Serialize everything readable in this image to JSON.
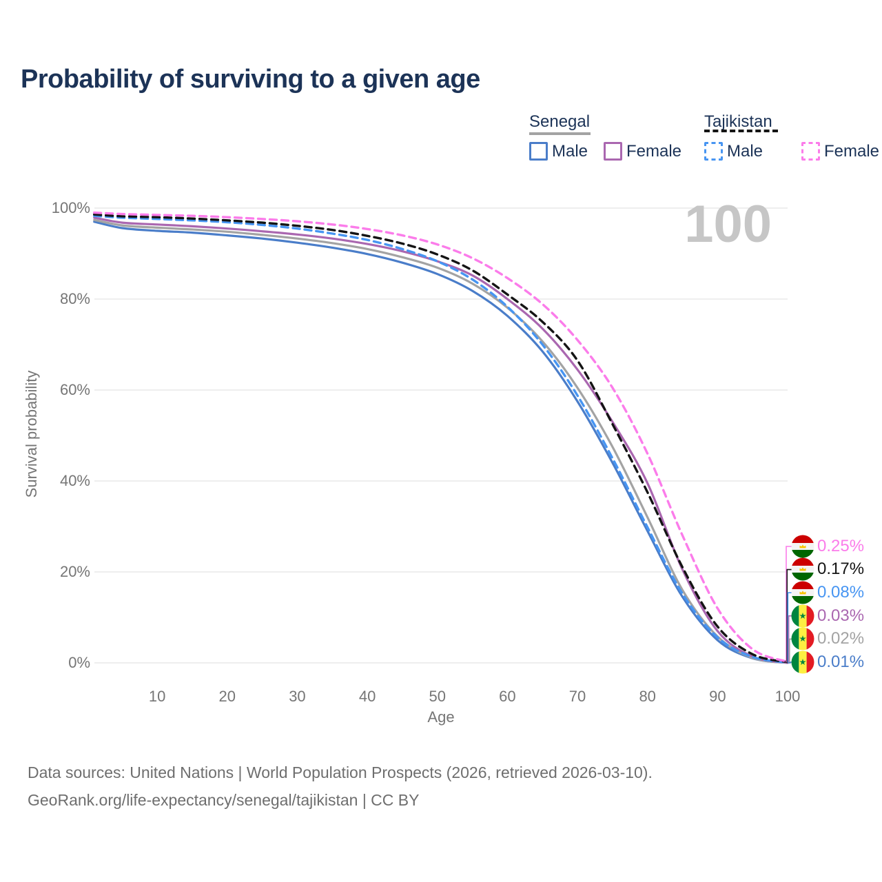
{
  "title": "Probability of surviving to a given age",
  "watermark_age": "100",
  "legend": {
    "groups": [
      {
        "label": "Senegal",
        "items": [
          {
            "label": "Male"
          },
          {
            "label": "Female"
          }
        ]
      },
      {
        "label": "Tajikistan",
        "items": [
          {
            "label": "Male"
          },
          {
            "label": "Female"
          }
        ]
      }
    ]
  },
  "chart_data": {
    "type": "line",
    "title": "Probability of surviving to a given age",
    "xlabel": "Age",
    "ylabel": "Survival probability",
    "xlim": [
      1,
      100
    ],
    "ylim": [
      0,
      100
    ],
    "grid": "horizontal",
    "x_ticks": [
      10,
      20,
      30,
      40,
      50,
      60,
      70,
      80,
      90,
      100
    ],
    "y_ticks": [
      0,
      20,
      40,
      60,
      80,
      100
    ],
    "y_tick_suffix": "%",
    "x": [
      1,
      5,
      10,
      15,
      20,
      25,
      30,
      35,
      40,
      45,
      50,
      55,
      60,
      65,
      70,
      75,
      80,
      85,
      90,
      95,
      100
    ],
    "series": [
      {
        "name": "Tajikistan Female",
        "country": "Tajikistan",
        "sex": "Female",
        "color": "#fb7cea",
        "dash": true,
        "end_label": "0.25%",
        "values": [
          99.0,
          98.7,
          98.5,
          98.3,
          98.0,
          97.6,
          97.1,
          96.4,
          95.4,
          94.0,
          92.0,
          89.0,
          84.6,
          78.9,
          71.0,
          60.5,
          46.0,
          28.0,
          12.0,
          3.0,
          0.25
        ]
      },
      {
        "name": "Tajikistan Both sexes",
        "country": "Tajikistan",
        "sex": "Both",
        "color": "#141414",
        "dash": true,
        "end_label": "0.17%",
        "values": [
          98.6,
          98.2,
          98.0,
          97.7,
          97.3,
          96.8,
          96.1,
          95.2,
          93.9,
          92.2,
          89.8,
          86.3,
          81.0,
          75.0,
          66.5,
          52.5,
          37.5,
          21.0,
          8.0,
          1.9,
          0.17
        ]
      },
      {
        "name": "Tajikistan Male",
        "country": "Tajikistan",
        "sex": "Male",
        "color": "#4795f2",
        "dash": true,
        "end_label": "0.08%",
        "values": [
          98.3,
          97.9,
          97.6,
          97.3,
          96.9,
          96.3,
          95.5,
          94.4,
          93.0,
          91.0,
          88.3,
          84.3,
          78.3,
          70.0,
          58.8,
          45.0,
          29.8,
          15.2,
          5.6,
          1.3,
          0.08
        ]
      },
      {
        "name": "Senegal Female",
        "country": "Senegal",
        "sex": "Female",
        "color": "#aa67b0",
        "dash": false,
        "end_label": "0.03%",
        "values": [
          97.9,
          96.8,
          96.4,
          96.0,
          95.5,
          94.9,
          94.2,
          93.3,
          92.1,
          90.5,
          88.3,
          85.2,
          80.0,
          73.5,
          64.5,
          53.0,
          39.5,
          20.5,
          7.0,
          1.4,
          0.03
        ]
      },
      {
        "name": "Senegal Both sexes",
        "country": "Senegal",
        "sex": "Both",
        "color": "#a3a3a3",
        "dash": false,
        "end_label": "0.02%",
        "values": [
          97.4,
          96.2,
          95.7,
          95.3,
          94.8,
          94.1,
          93.3,
          92.3,
          91.0,
          89.2,
          86.9,
          83.4,
          78.1,
          70.7,
          60.5,
          47.5,
          32.0,
          16.0,
          5.8,
          1.1,
          0.02
        ]
      },
      {
        "name": "Senegal Male",
        "country": "Senegal",
        "sex": "Male",
        "color": "#4a7dc9",
        "dash": false,
        "end_label": "0.01%",
        "values": [
          97.0,
          95.6,
          95.0,
          94.6,
          94.0,
          93.3,
          92.4,
          91.3,
          89.9,
          88.0,
          85.5,
          81.8,
          76.3,
          68.5,
          57.5,
          44.0,
          29.0,
          14.5,
          5.0,
          1.0,
          0.01
        ]
      }
    ]
  },
  "footer": {
    "line1": "Data sources: United Nations | World Population Prospects (2026, retrieved 2026-03-10).",
    "line2": "GeoRank.org/life-expectancy/senegal/tajikistan | CC BY"
  }
}
